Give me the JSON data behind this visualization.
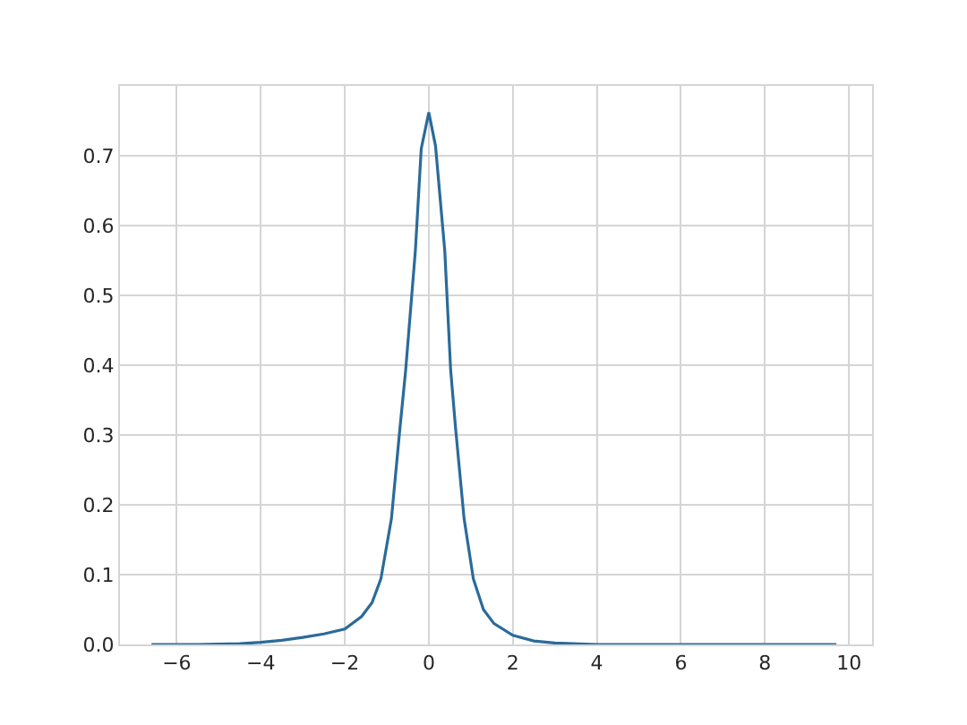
{
  "chart_data": {
    "type": "line",
    "grid": true,
    "xlim": [
      -7.35,
      10.55
    ],
    "ylim": [
      0,
      0.8
    ],
    "xticks": [
      {
        "value": -6,
        "label": "−6"
      },
      {
        "value": -4,
        "label": "−4"
      },
      {
        "value": -2,
        "label": "−2"
      },
      0,
      2,
      4,
      6,
      8,
      10
    ],
    "yticks": [
      {
        "value": 0,
        "label": "0.0"
      },
      0.1,
      0.2,
      0.3,
      0.4,
      0.5,
      0.6,
      0.7
    ],
    "x": [
      -6.6,
      -5.5,
      -4.5,
      -4,
      -3.5,
      -3,
      -2.5,
      -2,
      -1.6,
      -1.35,
      -1.14,
      -0.89,
      -0.69,
      -0.55,
      -0.32,
      -0.18,
      0,
      0.16,
      0.38,
      0.52,
      0.64,
      0.84,
      1.06,
      1.3,
      1.55,
      2,
      2.5,
      3,
      4,
      6,
      9.7
    ],
    "series": [
      {
        "color": "#2a6b9a",
        "values": [
          0,
          0,
          0.001,
          0.003,
          0.006,
          0.01,
          0.015,
          0.022,
          0.04,
          0.06,
          0.094,
          0.18,
          0.308,
          0.393,
          0.564,
          0.71,
          0.762,
          0.714,
          0.564,
          0.393,
          0.308,
          0.18,
          0.094,
          0.05,
          0.03,
          0.013,
          0.005,
          0.002,
          0,
          0,
          0
        ]
      }
    ]
  }
}
